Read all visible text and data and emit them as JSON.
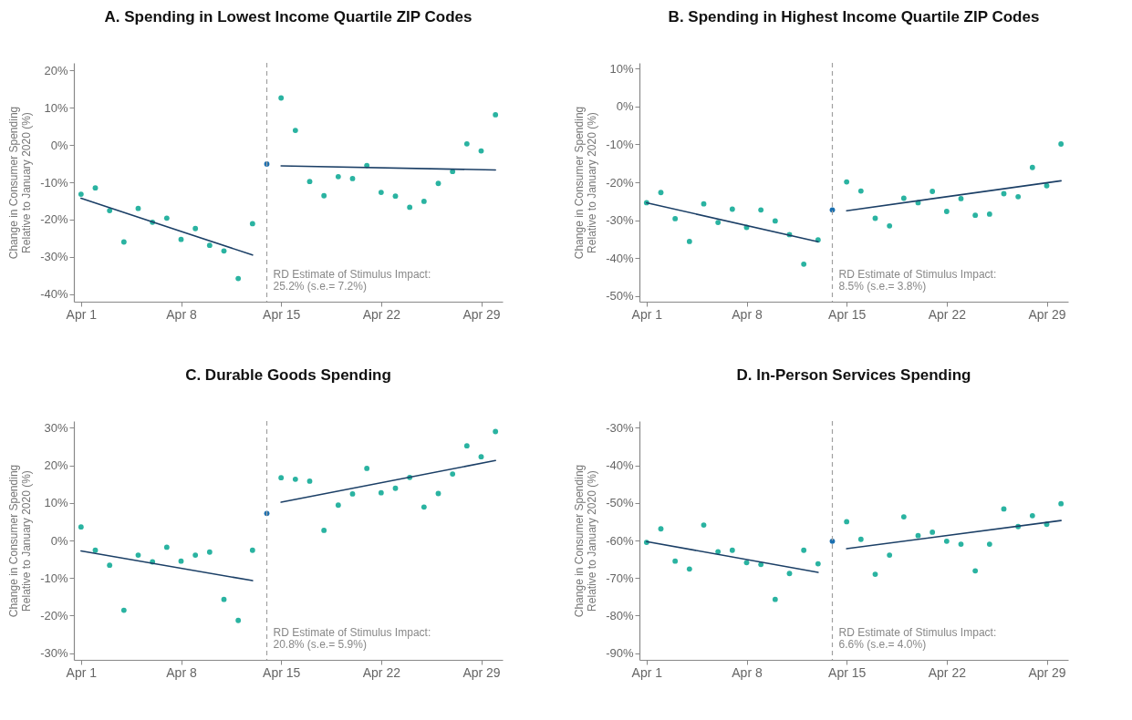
{
  "chart_data": [
    {
      "type": "scatter",
      "title": "A. Spending in Lowest Income Quartile ZIP Codes",
      "ylabel": "Change in Consumer Spending Relative to January 2020 (%)",
      "marker": "circle",
      "xlim": [
        "2020-03-31T12:00",
        "2020-04-30T12:00"
      ],
      "xticks": [
        {
          "value": "2020-04-01",
          "label": "Apr 1"
        },
        {
          "value": "2020-04-08",
          "label": "Apr 8"
        },
        {
          "value": "2020-04-15",
          "label": "Apr 15"
        },
        {
          "value": "2020-04-22",
          "label": "Apr 22"
        },
        {
          "value": "2020-04-29",
          "label": "Apr 29"
        }
      ],
      "ylim": [
        -42,
        22
      ],
      "yticks": [
        {
          "value": 20,
          "label": "20%"
        },
        {
          "value": 10,
          "label": "10%"
        },
        {
          "value": 0,
          "label": "0%"
        },
        {
          "value": -10,
          "label": "-10%"
        },
        {
          "value": -20,
          "label": "-20%"
        },
        {
          "value": -30,
          "label": "-30%"
        },
        {
          "value": -40,
          "label": "-40%"
        }
      ],
      "ref_lines": [
        {
          "axis": "x",
          "value": "2020-04-14",
          "color": "#a0a0a0",
          "line_style": "dashed"
        }
      ],
      "annotations": [
        "RD Estimate of Stimulus Impact:",
        "25.2% (s.e.= 7.2%)"
      ],
      "series": [
        {
          "color": "#2ab3a1",
          "x": [
            "2020-04-01",
            "2020-04-02",
            "2020-04-03",
            "2020-04-04",
            "2020-04-05",
            "2020-04-06",
            "2020-04-07",
            "2020-04-08",
            "2020-04-09",
            "2020-04-10",
            "2020-04-11",
            "2020-04-12",
            "2020-04-13",
            "2020-04-15",
            "2020-04-16",
            "2020-04-17",
            "2020-04-18",
            "2020-04-19",
            "2020-04-20",
            "2020-04-21",
            "2020-04-22",
            "2020-04-23",
            "2020-04-24",
            "2020-04-25",
            "2020-04-26",
            "2020-04-27",
            "2020-04-28",
            "2020-04-29",
            "2020-04-30"
          ],
          "values": [
            -13.2,
            -11.5,
            -17.6,
            -26.0,
            -17.0,
            -20.7,
            -19.6,
            -25.3,
            -22.4,
            -26.9,
            -28.4,
            -35.8,
            -21.1,
            12.6,
            3.9,
            -9.8,
            -13.6,
            -8.5,
            -9.0,
            -5.5,
            -12.7,
            -13.7,
            -16.7,
            -15.1,
            -10.3,
            -7.1,
            0.3,
            -1.6,
            8.1
          ]
        },
        {
          "color": "#1a6fb0",
          "x": [
            "2020-04-14"
          ],
          "values": [
            -5.1
          ]
        },
        {
          "type": "line",
          "color": "#1b3f66",
          "x": [
            "2020-04-01",
            "2020-04-13"
          ],
          "values": [
            -14.3,
            -29.5
          ],
          "marker": "none"
        },
        {
          "type": "line",
          "color": "#1b3f66",
          "x": [
            "2020-04-15",
            "2020-04-30"
          ],
          "values": [
            -5.6,
            -6.7
          ],
          "marker": "none"
        }
      ]
    },
    {
      "type": "scatter",
      "title": "B. Spending in Highest Income Quartile ZIP Codes",
      "ylabel": "Change in Consumer Spending Relative to January 2020 (%)",
      "marker": "circle",
      "xlim": [
        "2020-03-31T12:00",
        "2020-04-30T12:00"
      ],
      "xticks": [
        {
          "value": "2020-04-01",
          "label": "Apr 1"
        },
        {
          "value": "2020-04-08",
          "label": "Apr 8"
        },
        {
          "value": "2020-04-15",
          "label": "Apr 15"
        },
        {
          "value": "2020-04-22",
          "label": "Apr 22"
        },
        {
          "value": "2020-04-29",
          "label": "Apr 29"
        }
      ],
      "ylim": [
        -51.5,
        11.5
      ],
      "yticks": [
        {
          "value": 10,
          "label": "10%"
        },
        {
          "value": 0,
          "label": "0%"
        },
        {
          "value": -10,
          "label": "-10%"
        },
        {
          "value": -20,
          "label": "-20%"
        },
        {
          "value": -30,
          "label": "-30%"
        },
        {
          "value": -40,
          "label": "-40%"
        },
        {
          "value": -50,
          "label": "-50%"
        }
      ],
      "ref_lines": [
        {
          "axis": "x",
          "value": "2020-04-14",
          "color": "#a0a0a0",
          "line_style": "dashed"
        }
      ],
      "annotations": [
        "RD Estimate of Stimulus Impact:",
        "8.5% (s.e.= 3.8%)"
      ],
      "series": [
        {
          "color": "#2ab3a1",
          "x": [
            "2020-04-01",
            "2020-04-02",
            "2020-04-03",
            "2020-04-04",
            "2020-04-05",
            "2020-04-06",
            "2020-04-07",
            "2020-04-08",
            "2020-04-09",
            "2020-04-10",
            "2020-04-11",
            "2020-04-12",
            "2020-04-13",
            "2020-04-15",
            "2020-04-16",
            "2020-04-17",
            "2020-04-18",
            "2020-04-19",
            "2020-04-20",
            "2020-04-21",
            "2020-04-22",
            "2020-04-23",
            "2020-04-24",
            "2020-04-25",
            "2020-04-26",
            "2020-04-27",
            "2020-04-28",
            "2020-04-29",
            "2020-04-30"
          ],
          "values": [
            -25.4,
            -22.7,
            -29.6,
            -35.6,
            -25.7,
            -30.6,
            -27.1,
            -31.9,
            -27.3,
            -30.2,
            -33.8,
            -41.6,
            -35.2,
            -19.9,
            -22.3,
            -29.5,
            -31.5,
            -24.2,
            -25.4,
            -22.4,
            -27.7,
            -24.3,
            -28.7,
            -28.4,
            -23.0,
            -23.8,
            -16.1,
            -20.9,
            -9.9
          ]
        },
        {
          "color": "#1a6fb0",
          "x": [
            "2020-04-14"
          ],
          "values": [
            -27.3
          ]
        },
        {
          "type": "line",
          "color": "#1b3f66",
          "x": [
            "2020-04-01",
            "2020-04-13"
          ],
          "values": [
            -25.4,
            -35.7
          ],
          "marker": "none"
        },
        {
          "type": "line",
          "color": "#1b3f66",
          "x": [
            "2020-04-15",
            "2020-04-30"
          ],
          "values": [
            -27.5,
            -19.6
          ],
          "marker": "none"
        }
      ]
    },
    {
      "type": "scatter",
      "title": "C. Durable Goods Spending",
      "ylabel": "Change in Consumer Spending Relative to January 2020 (%)",
      "marker": "circle",
      "xlim": [
        "2020-03-31T12:00",
        "2020-04-30T12:00"
      ],
      "xticks": [
        {
          "value": "2020-04-01",
          "label": "Apr 1"
        },
        {
          "value": "2020-04-08",
          "label": "Apr 8"
        },
        {
          "value": "2020-04-15",
          "label": "Apr 15"
        },
        {
          "value": "2020-04-22",
          "label": "Apr 22"
        },
        {
          "value": "2020-04-29",
          "label": "Apr 29"
        }
      ],
      "ylim": [
        -31.8,
        31.8
      ],
      "yticks": [
        {
          "value": 30,
          "label": "30%"
        },
        {
          "value": 20,
          "label": "20%"
        },
        {
          "value": 10,
          "label": "10%"
        },
        {
          "value": 0,
          "label": "0%"
        },
        {
          "value": -10,
          "label": "-10%"
        },
        {
          "value": -20,
          "label": "-20%"
        },
        {
          "value": -30,
          "label": "-30%"
        }
      ],
      "ref_lines": [
        {
          "axis": "x",
          "value": "2020-04-14",
          "color": "#a0a0a0",
          "line_style": "dashed"
        }
      ],
      "annotations": [
        "RD Estimate of Stimulus Impact:",
        "20.8% (s.e.= 5.9%)"
      ],
      "series": [
        {
          "color": "#2ab3a1",
          "x": [
            "2020-04-01",
            "2020-04-02",
            "2020-04-03",
            "2020-04-04",
            "2020-04-05",
            "2020-04-06",
            "2020-04-07",
            "2020-04-08",
            "2020-04-09",
            "2020-04-10",
            "2020-04-11",
            "2020-04-12",
            "2020-04-13",
            "2020-04-15",
            "2020-04-16",
            "2020-04-17",
            "2020-04-18",
            "2020-04-19",
            "2020-04-20",
            "2020-04-21",
            "2020-04-22",
            "2020-04-23",
            "2020-04-24",
            "2020-04-25",
            "2020-04-26",
            "2020-04-27",
            "2020-04-28",
            "2020-04-29",
            "2020-04-30"
          ],
          "values": [
            3.6,
            -2.6,
            -6.6,
            -18.6,
            -3.9,
            -5.7,
            -1.8,
            -5.5,
            -3.9,
            -3.1,
            -15.7,
            -21.3,
            -2.6,
            16.7,
            16.3,
            15.8,
            2.7,
            9.4,
            12.4,
            19.2,
            12.7,
            13.9,
            16.8,
            8.9,
            12.5,
            17.7,
            25.2,
            22.3,
            29.0
          ]
        },
        {
          "color": "#1a6fb0",
          "x": [
            "2020-04-14"
          ],
          "values": [
            7.2
          ]
        },
        {
          "type": "line",
          "color": "#1b3f66",
          "x": [
            "2020-04-01",
            "2020-04-13"
          ],
          "values": [
            -2.8,
            -10.7
          ],
          "marker": "none"
        },
        {
          "type": "line",
          "color": "#1b3f66",
          "x": [
            "2020-04-15",
            "2020-04-30"
          ],
          "values": [
            10.2,
            21.3
          ],
          "marker": "none"
        }
      ]
    },
    {
      "type": "scatter",
      "title": "D. In-Person Services Spending",
      "ylabel": "Change in Consumer Spending Relative to January 2020 (%)",
      "marker": "circle",
      "xlim": [
        "2020-03-31T12:00",
        "2020-04-30T12:00"
      ],
      "xticks": [
        {
          "value": "2020-04-01",
          "label": "Apr 1"
        },
        {
          "value": "2020-04-08",
          "label": "Apr 8"
        },
        {
          "value": "2020-04-15",
          "label": "Apr 15"
        },
        {
          "value": "2020-04-22",
          "label": "Apr 22"
        },
        {
          "value": "2020-04-29",
          "label": "Apr 29"
        }
      ],
      "ylim": [
        -91.8,
        -28.2
      ],
      "yticks": [
        {
          "value": -30,
          "label": "-30%"
        },
        {
          "value": -40,
          "label": "-40%"
        },
        {
          "value": -50,
          "label": "-50%"
        },
        {
          "value": -60,
          "label": "-60%"
        },
        {
          "value": -70,
          "label": "-70%"
        },
        {
          "value": -80,
          "label": "-80%"
        },
        {
          "value": -90,
          "label": "-90%"
        }
      ],
      "ref_lines": [
        {
          "axis": "x",
          "value": "2020-04-14",
          "color": "#a0a0a0",
          "line_style": "dashed"
        }
      ],
      "annotations": [
        "RD Estimate of Stimulus Impact:",
        "6.6% (s.e.= 4.0%)"
      ],
      "series": [
        {
          "color": "#2ab3a1",
          "x": [
            "2020-04-01",
            "2020-04-02",
            "2020-04-03",
            "2020-04-04",
            "2020-04-05",
            "2020-04-06",
            "2020-04-07",
            "2020-04-08",
            "2020-04-09",
            "2020-04-10",
            "2020-04-11",
            "2020-04-12",
            "2020-04-13",
            "2020-04-15",
            "2020-04-16",
            "2020-04-17",
            "2020-04-18",
            "2020-04-19",
            "2020-04-20",
            "2020-04-21",
            "2020-04-22",
            "2020-04-23",
            "2020-04-24",
            "2020-04-25",
            "2020-04-26",
            "2020-04-27",
            "2020-04-28",
            "2020-04-29",
            "2020-04-30"
          ],
          "values": [
            -60.5,
            -56.9,
            -65.5,
            -67.6,
            -55.9,
            -63.0,
            -62.6,
            -65.9,
            -66.4,
            -75.7,
            -68.8,
            -62.6,
            -66.2,
            -55.0,
            -59.7,
            -69.0,
            -63.9,
            -53.7,
            -58.7,
            -57.8,
            -60.2,
            -61.0,
            -68.1,
            -61.0,
            -51.6,
            -56.3,
            -53.4,
            -55.7,
            -50.2
          ]
        },
        {
          "color": "#1a6fb0",
          "x": [
            "2020-04-14"
          ],
          "values": [
            -60.2
          ]
        },
        {
          "type": "line",
          "color": "#1b3f66",
          "x": [
            "2020-04-01",
            "2020-04-13"
          ],
          "values": [
            -60.3,
            -68.5
          ],
          "marker": "none"
        },
        {
          "type": "line",
          "color": "#1b3f66",
          "x": [
            "2020-04-15",
            "2020-04-30"
          ],
          "values": [
            -62.2,
            -54.7
          ],
          "marker": "none"
        }
      ]
    }
  ]
}
